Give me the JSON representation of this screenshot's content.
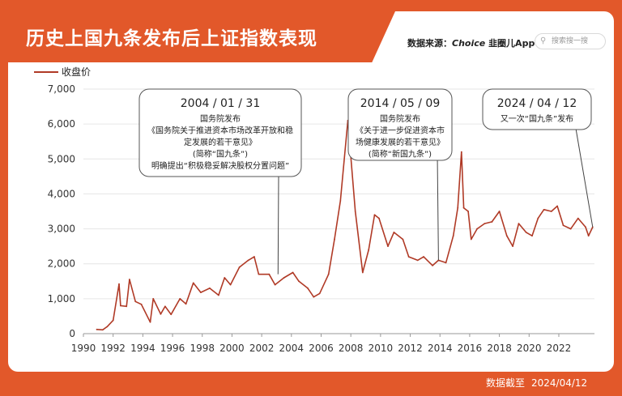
{
  "title": "历史上国九条发布后上证指数表现",
  "source": {
    "label": "数据来源：",
    "brand": "Choice",
    "app": "韭圈儿App"
  },
  "search": {
    "placeholder": "搜索搜一搜",
    "icon": "search-icon"
  },
  "legend": {
    "label": "收盘价"
  },
  "footer": {
    "label": "数据截至",
    "date": "2024/04/12"
  },
  "colors": {
    "accent": "#e2582a",
    "line": "#b03a26",
    "grid": "#e6e6e6"
  },
  "annotations": [
    {
      "date": "2004 / 01 / 31",
      "lines": [
        "国务院发布",
        "《国务院关于推进资本市场改革开放和稳",
        "定发展的若干意见》",
        "(简称“国九条”)",
        "明确提出“积极稳妥解决股权分置问题”"
      ]
    },
    {
      "date": "2014 / 05 / 09",
      "lines": [
        "国务院发布",
        "《关于进一步促进资本市",
        "场健康发展的若干意见》",
        "(简称“新国九条”)"
      ]
    },
    {
      "date": "2024 / 04 / 12",
      "lines": [
        "又一次“国九条”发布"
      ]
    }
  ],
  "chart_data": {
    "type": "line",
    "title": "历史上国九条发布后上证指数表现",
    "series_name": "收盘价",
    "xlabel": "",
    "ylabel": "",
    "xlim": [
      1990,
      2024.4
    ],
    "ylim": [
      0,
      7000
    ],
    "yticks": [
      0,
      1000,
      2000,
      3000,
      4000,
      5000,
      6000,
      7000
    ],
    "ytick_labels": [
      "0",
      "1,000",
      "2,000",
      "3,000",
      "4,000",
      "5,000",
      "6,000",
      "7,000"
    ],
    "xticks": [
      1990,
      1992,
      1994,
      1996,
      1998,
      2000,
      2002,
      2004,
      2006,
      2008,
      2010,
      2012,
      2014,
      2016,
      2018,
      2020,
      2022
    ],
    "xtick_labels": [
      "1990",
      "1992",
      "1994",
      "1996",
      "1998",
      "2000",
      "2002",
      "2004",
      "2006",
      "2008",
      "2010",
      "2012",
      "2014",
      "2016",
      "2018",
      "2020",
      "2022"
    ],
    "grid": true,
    "x": [
      1990.9,
      1991.3,
      1991.6,
      1992.0,
      1992.4,
      1992.5,
      1992.9,
      1993.1,
      1993.5,
      1993.9,
      1994.5,
      1994.7,
      1995.2,
      1995.5,
      1995.9,
      1996.5,
      1996.9,
      1997.4,
      1997.9,
      1998.5,
      1999.1,
      1999.5,
      1999.9,
      2000.5,
      2001.1,
      2001.5,
      2001.8,
      2002.5,
      2002.9,
      2003.5,
      2004.1,
      2004.5,
      2005.1,
      2005.5,
      2005.9,
      2006.5,
      2006.9,
      2007.3,
      2007.8,
      2008.3,
      2008.8,
      2009.2,
      2009.6,
      2009.9,
      2010.5,
      2010.9,
      2011.5,
      2011.9,
      2012.5,
      2012.9,
      2013.5,
      2013.9,
      2014.4,
      2014.9,
      2015.2,
      2015.45,
      2015.6,
      2015.9,
      2016.1,
      2016.5,
      2017.0,
      2017.5,
      2018.0,
      2018.5,
      2018.9,
      2019.3,
      2019.8,
      2020.2,
      2020.6,
      2021.0,
      2021.5,
      2021.9,
      2022.3,
      2022.8,
      2023.3,
      2023.8,
      2024.0,
      2024.28
    ],
    "values": [
      120,
      110,
      200,
      380,
      1420,
      800,
      780,
      1550,
      920,
      840,
      330,
      1000,
      560,
      780,
      550,
      1000,
      850,
      1450,
      1180,
      1300,
      1100,
      1600,
      1400,
      1900,
      2100,
      2200,
      1700,
      1700,
      1400,
      1600,
      1750,
      1500,
      1300,
      1050,
      1150,
      1700,
      2700,
      3800,
      6100,
      3500,
      1750,
      2400,
      3400,
      3300,
      2500,
      2900,
      2700,
      2200,
      2100,
      2200,
      1950,
      2100,
      2030,
      2800,
      3600,
      5200,
      3600,
      3500,
      2700,
      3000,
      3150,
      3200,
      3500,
      2800,
      2500,
      3150,
      2900,
      2800,
      3300,
      3550,
      3500,
      3650,
      3100,
      3000,
      3300,
      3050,
      2800,
      3050
    ]
  }
}
